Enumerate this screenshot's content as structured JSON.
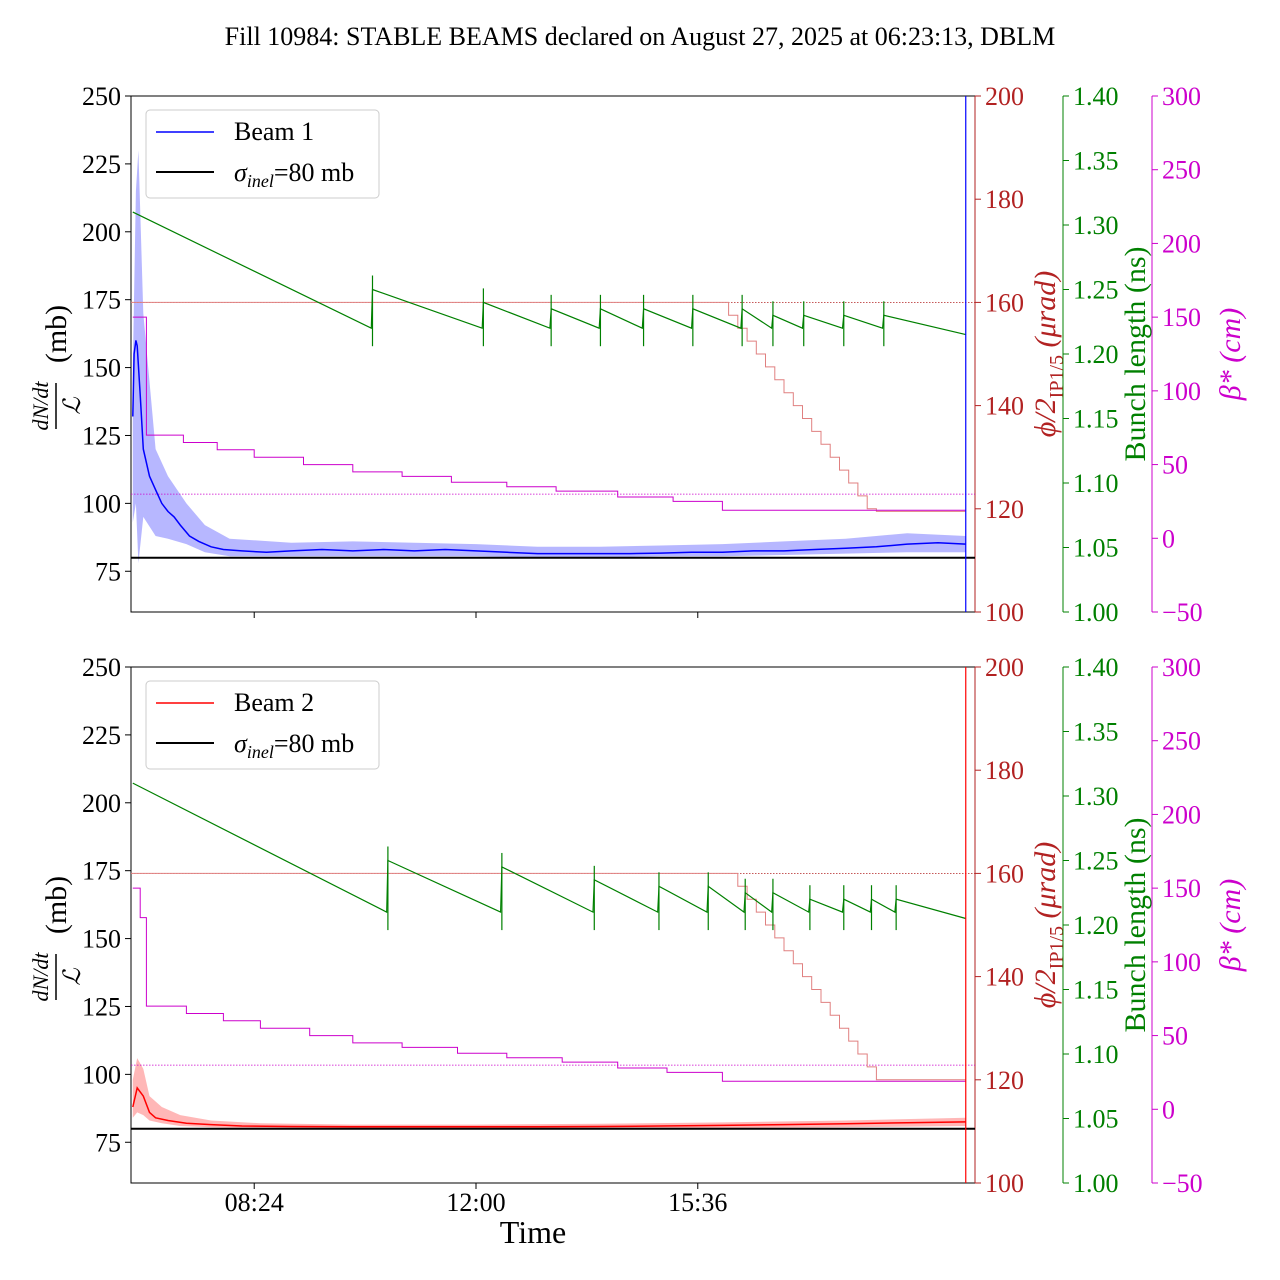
{
  "title": "Fill 10984: STABLE BEAMS declared on August 27, 2025 at 06:23:13, DBLM",
  "colors": {
    "beam1": "#0000ff",
    "beam1_band": "#9999ff",
    "beam2": "#ff0000",
    "beam2_band": "#ff9999",
    "sigma": "#000000",
    "crossing": "#b22222",
    "bunch": "#008000",
    "beta": "#cc00cc"
  },
  "chart_data": [
    {
      "type": "line",
      "panel": "top",
      "xlabel": "",
      "ylabel": "(mb)",
      "ylabel_fraction": {
        "numerator": "dN/dt",
        "denominator": "ℒ"
      },
      "ylim": [
        60,
        250
      ],
      "yticks": [
        75,
        100,
        125,
        150,
        175,
        200,
        225,
        250
      ],
      "right_axes": [
        {
          "label_main": "ϕ/2",
          "label_sub": "IP1/5",
          "label_unit": " (μrad)",
          "ylim": [
            100,
            200
          ],
          "ticks": [
            100,
            120,
            140,
            160,
            180,
            200
          ],
          "color": "#b22222"
        },
        {
          "label_main": "Bunch length (ns)",
          "ylim": [
            1.0,
            1.4
          ],
          "ticks": [
            "1.00",
            "1.05",
            "1.10",
            "1.15",
            "1.20",
            "1.25",
            "1.30",
            "1.35",
            "1.40"
          ],
          "color": "#008000"
        },
        {
          "label_main": "β* (cm)",
          "ylim": [
            -50,
            300
          ],
          "ticks": [
            "−50",
            "0",
            "50",
            "100",
            "150",
            "200",
            "250",
            "300"
          ],
          "color": "#cc00cc"
        }
      ],
      "legend": {
        "placement": "upper-left",
        "entries": [
          {
            "label": "Beam 1",
            "color": "#0000ff"
          },
          {
            "label_main": "σ",
            "label_sub": "inel",
            "label_rest": "=80 mb",
            "color": "#000000"
          }
        ]
      },
      "x_hours": [
        6.4,
        20.1
      ],
      "series": [
        {
          "name": "Beam 1",
          "axis": "left",
          "x": [
            6.43,
            6.45,
            6.48,
            6.5,
            6.55,
            6.6,
            6.7,
            6.8,
            6.9,
            7.0,
            7.1,
            7.2,
            7.35,
            7.5,
            7.7,
            7.9,
            8.2,
            8.6,
            9.0,
            9.5,
            10.0,
            10.5,
            11.0,
            11.5,
            12.0,
            12.5,
            13.0,
            13.5,
            14.0,
            14.5,
            15.0,
            15.5,
            16.0,
            16.5,
            17.0,
            17.5,
            18.0,
            18.5,
            19.0,
            19.5,
            19.95
          ],
          "y": [
            132,
            155,
            160,
            158,
            140,
            120,
            110,
            105,
            100,
            97,
            95,
            92,
            88,
            86,
            84,
            83,
            82.5,
            82,
            82.5,
            83,
            82.5,
            83,
            82.5,
            83,
            82.5,
            82,
            81.5,
            81.5,
            81.5,
            81.5,
            81.7,
            82,
            82,
            82.5,
            82.5,
            83,
            83.5,
            84,
            85,
            85.5,
            85
          ]
        },
        {
          "name": "Beam 1 band upper",
          "axis": "left",
          "x": [
            6.43,
            6.48,
            6.52,
            6.6,
            6.8,
            7.0,
            7.3,
            7.6,
            8.0,
            9.0,
            10.0,
            11.0,
            12.0,
            13.0,
            14.0,
            15.0,
            16.0,
            17.0,
            18.0,
            19.0,
            19.95
          ],
          "y": [
            150,
            215,
            230,
            170,
            120,
            110,
            100,
            92,
            87,
            85.5,
            86,
            85.5,
            85,
            84,
            84,
            84.5,
            85,
            86,
            87,
            89,
            88
          ]
        },
        {
          "name": "Beam 1 band lower",
          "axis": "left",
          "x": [
            6.43,
            6.48,
            6.52,
            6.6,
            6.8,
            7.0,
            7.3,
            7.6,
            8.0,
            9.0,
            10.0,
            11.0,
            12.0,
            13.0,
            14.0,
            15.0,
            16.0,
            17.0,
            18.0,
            19.0,
            19.95
          ],
          "y": [
            93,
            100,
            78,
            95,
            88,
            87,
            85,
            82,
            80.5,
            80.5,
            80.5,
            80.5,
            80.5,
            80,
            80,
            80.5,
            80.5,
            81,
            81.5,
            82,
            82
          ]
        },
        {
          "name": "sigma 80 mb",
          "axis": "left",
          "x": [
            6.4,
            20.1
          ],
          "y": [
            80,
            80
          ]
        },
        {
          "name": "Crossing angle",
          "axis": "crossing",
          "x": [
            6.4,
            16.0,
            16.1,
            16.25,
            16.4,
            16.55,
            16.7,
            16.85,
            17.0,
            17.15,
            17.3,
            17.45,
            17.6,
            17.75,
            17.9,
            18.05,
            18.2,
            18.35,
            18.5,
            19.95
          ],
          "y": [
            160,
            160,
            157.5,
            155,
            152.5,
            150,
            147.5,
            145,
            142.5,
            140,
            137.5,
            135,
            132.5,
            130,
            127.5,
            125,
            122.5,
            120,
            119.5,
            119.5
          ]
        },
        {
          "name": "Bunch length",
          "axis": "bunch",
          "x": [
            6.43,
            10.3,
            10.32,
            12.1,
            12.12,
            13.2,
            13.22,
            14.0,
            14.02,
            14.7,
            14.72,
            15.5,
            15.52,
            16.3,
            16.32,
            16.8,
            16.82,
            17.3,
            17.32,
            17.95,
            17.97,
            18.6,
            18.62,
            19.95
          ],
          "y": [
            1.31,
            1.22,
            1.25,
            1.22,
            1.24,
            1.22,
            1.235,
            1.22,
            1.235,
            1.22,
            1.235,
            1.22,
            1.235,
            1.22,
            1.235,
            1.22,
            1.23,
            1.22,
            1.23,
            1.22,
            1.23,
            1.22,
            1.23,
            1.215
          ]
        },
        {
          "name": "beta*",
          "axis": "beta",
          "x": [
            6.43,
            6.65,
            6.65,
            7.25,
            7.25,
            7.8,
            7.8,
            8.4,
            8.4,
            9.2,
            9.2,
            10.0,
            10.0,
            10.8,
            10.8,
            11.6,
            11.6,
            12.5,
            12.5,
            13.3,
            13.3,
            14.3,
            14.3,
            15.2,
            15.2,
            16.0,
            16.0,
            19.95
          ],
          "y": [
            150,
            150,
            70,
            70,
            65,
            65,
            60,
            60,
            55,
            55,
            50,
            50,
            45,
            45,
            42,
            42,
            38,
            38,
            35,
            35,
            32,
            32,
            28,
            28,
            25,
            25,
            19,
            19
          ]
        },
        {
          "name": "reference crossing dotted",
          "axis": "crossing",
          "x": [
            6.4,
            20.1
          ],
          "y": [
            160,
            160
          ]
        },
        {
          "name": "reference beta dotted",
          "axis": "beta",
          "x": [
            6.4,
            20.1
          ],
          "y": [
            30,
            30
          ]
        }
      ]
    },
    {
      "type": "line",
      "panel": "bottom",
      "xlabel": "Time",
      "xticks": [
        {
          "value": 8.4,
          "label": "08:24"
        },
        {
          "value": 12.0,
          "label": "12:00"
        },
        {
          "value": 15.6,
          "label": "15:36"
        }
      ],
      "ylabel": "(mb)",
      "ylabel_fraction": {
        "numerator": "dN/dt",
        "denominator": "ℒ"
      },
      "ylim": [
        60,
        250
      ],
      "yticks": [
        75,
        100,
        125,
        150,
        175,
        200,
        225,
        250
      ],
      "right_axes": [
        {
          "label_main": "ϕ/2",
          "label_sub": "IP1/5",
          "label_unit": " (μrad)",
          "ylim": [
            100,
            200
          ],
          "ticks": [
            100,
            120,
            140,
            160,
            180,
            200
          ],
          "color": "#b22222"
        },
        {
          "label_main": "Bunch length (ns)",
          "ylim": [
            1.0,
            1.4
          ],
          "ticks": [
            "1.00",
            "1.05",
            "1.10",
            "1.15",
            "1.20",
            "1.25",
            "1.30",
            "1.35",
            "1.40"
          ],
          "color": "#008000"
        },
        {
          "label_main": "β* (cm)",
          "ylim": [
            -50,
            300
          ],
          "ticks": [
            "−50",
            "0",
            "50",
            "100",
            "150",
            "200",
            "250",
            "300"
          ],
          "color": "#cc00cc"
        }
      ],
      "legend": {
        "placement": "upper-left",
        "entries": [
          {
            "label": "Beam 2",
            "color": "#ff0000"
          },
          {
            "label_main": "σ",
            "label_sub": "inel",
            "label_rest": "=80 mb",
            "color": "#000000"
          }
        ]
      },
      "x_hours": [
        6.4,
        20.1
      ],
      "series": [
        {
          "name": "Beam 2",
          "axis": "left",
          "x": [
            6.43,
            6.5,
            6.6,
            6.7,
            6.8,
            7.0,
            7.3,
            7.7,
            8.2,
            9.0,
            10.0,
            11.0,
            12.0,
            13.0,
            14.0,
            15.0,
            16.0,
            17.0,
            18.0,
            19.0,
            19.95
          ],
          "y": [
            88,
            95,
            92,
            86,
            84,
            83,
            82,
            81.5,
            81,
            80.8,
            80.7,
            80.7,
            80.7,
            80.7,
            80.8,
            81,
            81.2,
            81.5,
            81.8,
            82.2,
            82.5
          ]
        },
        {
          "name": "Beam 2 band upper",
          "axis": "left",
          "x": [
            6.43,
            6.5,
            6.6,
            6.7,
            6.9,
            7.2,
            7.7,
            8.5,
            10.0,
            12.0,
            14.0,
            16.0,
            18.0,
            19.95
          ],
          "y": [
            98,
            106,
            102,
            92,
            88,
            85,
            83,
            82,
            81.5,
            81.5,
            81.8,
            82.3,
            83,
            84
          ]
        },
        {
          "name": "Beam 2 band lower",
          "axis": "left",
          "x": [
            6.43,
            6.5,
            6.6,
            6.7,
            6.9,
            7.2,
            7.7,
            8.5,
            10.0,
            12.0,
            14.0,
            16.0,
            18.0,
            19.95
          ],
          "y": [
            84,
            86,
            85,
            83,
            82,
            81,
            80.5,
            80.2,
            80,
            80,
            80,
            80.2,
            80.5,
            81
          ]
        },
        {
          "name": "sigma 80 mb",
          "axis": "left",
          "x": [
            6.4,
            20.1
          ],
          "y": [
            80,
            80
          ]
        },
        {
          "name": "Crossing angle",
          "axis": "crossing",
          "x": [
            6.4,
            16.1,
            16.25,
            16.4,
            16.55,
            16.7,
            16.85,
            17.0,
            17.15,
            17.3,
            17.45,
            17.6,
            17.75,
            17.9,
            18.05,
            18.2,
            18.35,
            18.5,
            19.95
          ],
          "y": [
            160,
            160,
            157.5,
            155,
            152.5,
            150,
            147.5,
            145,
            142.5,
            140,
            137.5,
            135,
            132.5,
            130,
            127.5,
            125,
            122.5,
            120,
            120
          ]
        },
        {
          "name": "Bunch length",
          "axis": "bunch",
          "x": [
            6.43,
            10.55,
            10.57,
            12.4,
            12.42,
            13.9,
            13.92,
            14.95,
            14.97,
            15.75,
            15.77,
            16.35,
            16.37,
            16.8,
            16.82,
            17.4,
            17.42,
            17.95,
            17.97,
            18.4,
            18.42,
            18.8,
            18.82,
            19.95
          ],
          "y": [
            1.31,
            1.21,
            1.25,
            1.21,
            1.245,
            1.21,
            1.235,
            1.21,
            1.23,
            1.21,
            1.23,
            1.21,
            1.225,
            1.21,
            1.225,
            1.21,
            1.22,
            1.21,
            1.22,
            1.21,
            1.22,
            1.21,
            1.22,
            1.205
          ]
        },
        {
          "name": "beta*",
          "axis": "beta",
          "x": [
            6.43,
            6.55,
            6.55,
            6.65,
            6.65,
            7.3,
            7.3,
            7.9,
            7.9,
            8.5,
            8.5,
            9.3,
            9.3,
            10.0,
            10.0,
            10.8,
            10.8,
            11.7,
            11.7,
            12.5,
            12.5,
            13.4,
            13.4,
            14.3,
            14.3,
            15.1,
            15.1,
            16.0,
            16.0,
            19.95
          ],
          "y": [
            150,
            150,
            130,
            130,
            70,
            70,
            65,
            65,
            60,
            60,
            55,
            55,
            50,
            50,
            45,
            45,
            42,
            42,
            38,
            38,
            35,
            35,
            32,
            32,
            28,
            28,
            25,
            25,
            19,
            19
          ]
        },
        {
          "name": "reference crossing dotted",
          "axis": "crossing",
          "x": [
            6.4,
            20.1
          ],
          "y": [
            160,
            160
          ]
        },
        {
          "name": "reference beta dotted",
          "axis": "beta",
          "x": [
            6.4,
            20.1
          ],
          "y": [
            30,
            30
          ]
        }
      ]
    }
  ]
}
